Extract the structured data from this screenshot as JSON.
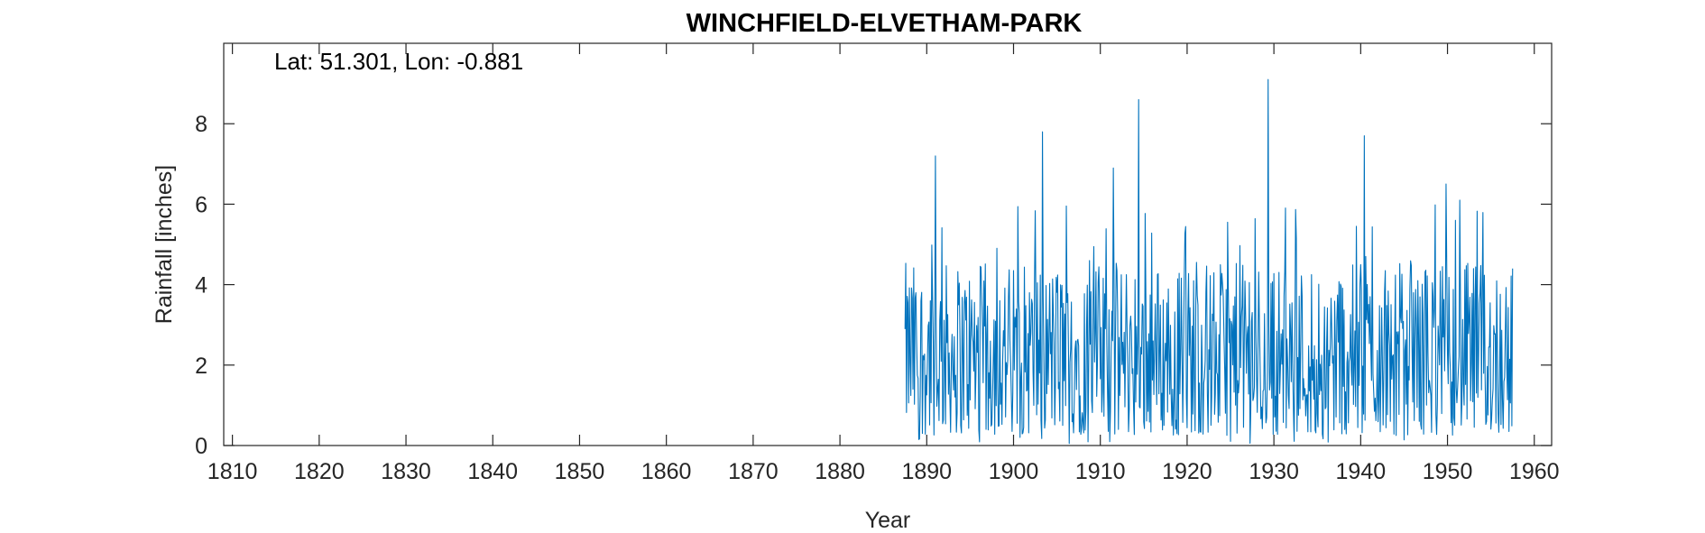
{
  "chart_data": {
    "type": "line",
    "title": "WINCHFIELD-ELVETHAM-PARK",
    "annotation": "Lat: 51.301, Lon: -0.881",
    "xlabel": "Year",
    "ylabel": "Rainfall [inches]",
    "xlim": [
      1809,
      1962
    ],
    "ylim": [
      0,
      10
    ],
    "xticks": [
      1810,
      1820,
      1830,
      1840,
      1850,
      1860,
      1870,
      1880,
      1890,
      1900,
      1910,
      1920,
      1930,
      1940,
      1950,
      1960
    ],
    "yticks": [
      0,
      2,
      4,
      6,
      8
    ],
    "grid": false,
    "series": [
      {
        "color": "#0072BD",
        "sampling": "monthly",
        "x_start": 1887.5,
        "x_end": 1957.5,
        "notable_peaks": [
          {
            "x": 1891.0,
            "y": 7.2
          },
          {
            "x": 1903.3,
            "y": 7.8
          },
          {
            "x": 1911.5,
            "y": 6.9
          },
          {
            "x": 1914.4,
            "y": 8.6
          },
          {
            "x": 1929.3,
            "y": 9.1
          },
          {
            "x": 1940.4,
            "y": 7.7
          },
          {
            "x": 1949.8,
            "y": 6.5
          },
          {
            "x": 1951.4,
            "y": 6.1
          }
        ]
      }
    ]
  }
}
